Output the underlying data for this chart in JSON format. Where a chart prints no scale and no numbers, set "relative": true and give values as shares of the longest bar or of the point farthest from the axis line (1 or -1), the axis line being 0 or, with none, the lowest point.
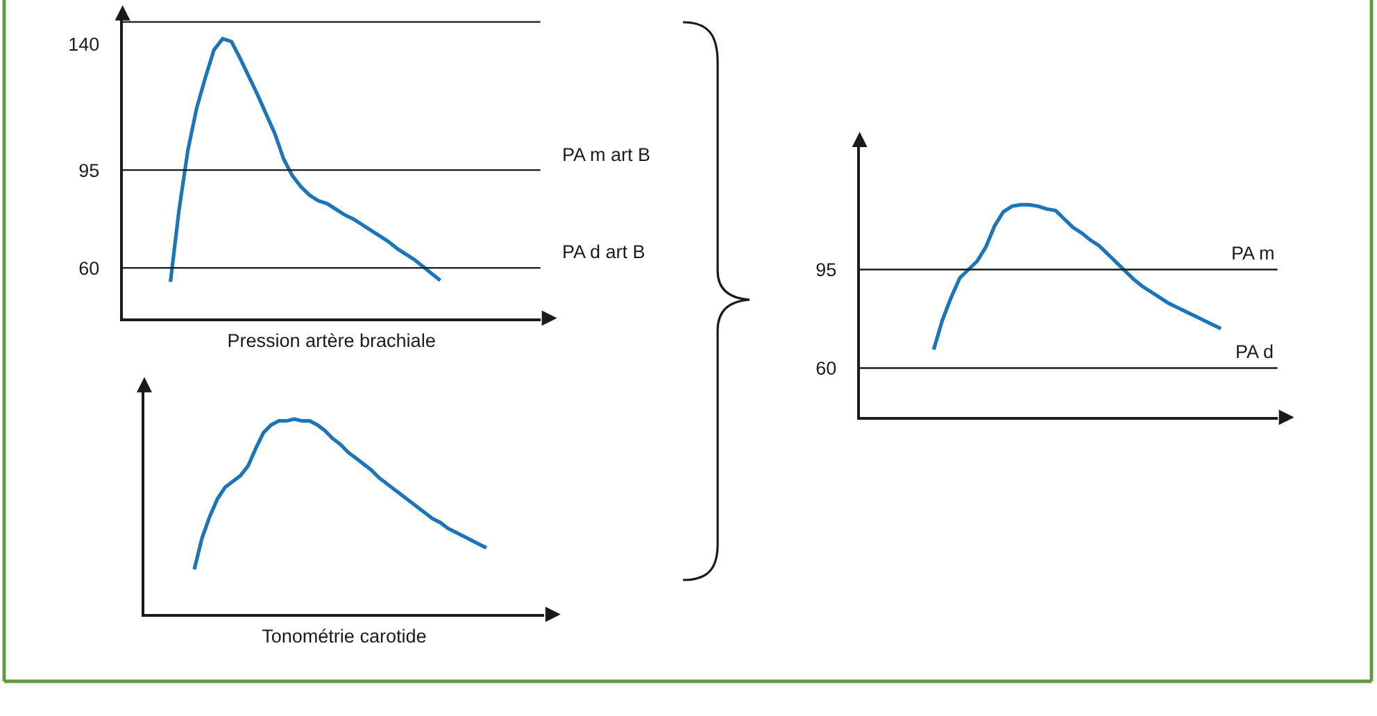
{
  "chart_data": [
    {
      "type": "line",
      "xlabel": "Pression artère brachiale",
      "categories": [
        null,
        null,
        null,
        null,
        null,
        null,
        null,
        null,
        null,
        null,
        null,
        null,
        null,
        null,
        null,
        null,
        null,
        null,
        null,
        null,
        null,
        null,
        null,
        null,
        null,
        null,
        null,
        null,
        null,
        null,
        null,
        null,
        null,
        null,
        null,
        null,
        null,
        null,
        null,
        null,
        null,
        null,
        null,
        null,
        null,
        null,
        null,
        null
      ],
      "series": [
        {
          "color": "#1b75bb",
          "values": [
            null,
            null,
            null,
            null,
            null,
            55,
            81,
            102,
            117,
            128,
            138,
            142,
            141,
            135,
            128.5,
            122,
            115,
            108,
            99,
            93,
            89,
            86,
            84,
            83,
            81,
            79,
            77.5,
            75.5,
            73.5,
            71.5,
            69.5,
            67,
            65,
            63,
            60.5,
            58,
            55.5,
            null,
            null,
            null,
            null,
            null,
            null,
            null,
            null,
            null,
            null,
            null
          ]
        }
      ],
      "ylim": [
        42,
        150
      ],
      "yticks": [
        60,
        95,
        140
      ],
      "ref_lines": [
        {
          "axis": "y",
          "value": 148
        },
        {
          "axis": "y",
          "value": 95,
          "label": "PA m art B"
        },
        {
          "axis": "y",
          "value": 60,
          "label": "PA d art B"
        }
      ]
    },
    {
      "type": "line",
      "xlabel": "Tonométrie carotide",
      "relative": true,
      "categories": [
        null,
        null,
        null,
        null,
        null,
        null,
        null,
        null,
        null,
        null,
        null,
        null,
        null,
        null,
        null,
        null,
        null,
        null,
        null,
        null,
        null,
        null,
        null,
        null,
        null,
        null,
        null,
        null,
        null,
        null,
        null,
        null,
        null,
        null,
        null,
        null,
        null,
        null,
        null,
        null,
        null,
        null,
        null,
        null,
        null,
        null,
        null,
        null,
        null,
        null,
        null,
        null
      ],
      "series": [
        {
          "color": "#1b75bb",
          "values": [
            null,
            null,
            null,
            null,
            null,
            null,
            0.23,
            0.39,
            0.5,
            0.59,
            0.65,
            0.68,
            0.71,
            0.76,
            0.85,
            0.93,
            0.97,
            0.99,
            0.99,
            1,
            0.99,
            0.99,
            0.97,
            0.94,
            0.9,
            0.87,
            0.83,
            0.8,
            0.77,
            0.74,
            0.7,
            0.67,
            0.64,
            0.61,
            0.58,
            0.55,
            0.52,
            0.49,
            0.47,
            0.44,
            0.42,
            0.4,
            0.38,
            0.36,
            0.34,
            null,
            null,
            null,
            null,
            null,
            null,
            null
          ]
        }
      ]
    },
    {
      "type": "line",
      "categories": [
        null,
        null,
        null,
        null,
        null,
        null,
        null,
        null,
        null,
        null,
        null,
        null,
        null,
        null,
        null,
        null,
        null,
        null,
        null,
        null,
        null,
        null,
        null,
        null,
        null,
        null,
        null,
        null,
        null,
        null,
        null,
        null,
        null,
        null,
        null,
        null,
        null,
        null,
        null,
        null,
        null,
        null,
        null,
        null,
        null,
        null,
        null,
        null
      ],
      "series": [
        {
          "color": "#1b75bb",
          "values": [
            null,
            null,
            null,
            null,
            null,
            null,
            null,
            null,
            66.5,
            77,
            85,
            92,
            95,
            98,
            103,
            110.5,
            115.5,
            117.5,
            118,
            118,
            117.5,
            116.5,
            116,
            113,
            110,
            108,
            105.5,
            103.5,
            100.5,
            97.5,
            94.5,
            91.5,
            89,
            87,
            85,
            83,
            81.5,
            80,
            78.5,
            77,
            75.5,
            74,
            null,
            null,
            null,
            null,
            null,
            null
          ]
        }
      ],
      "ylim": [
        42.5,
        140
      ],
      "yticks": [
        60,
        95
      ],
      "ref_lines": [
        {
          "axis": "y",
          "value": 95,
          "label": "PA m"
        },
        {
          "axis": "y",
          "value": 60,
          "label": "PA d"
        }
      ]
    }
  ]
}
